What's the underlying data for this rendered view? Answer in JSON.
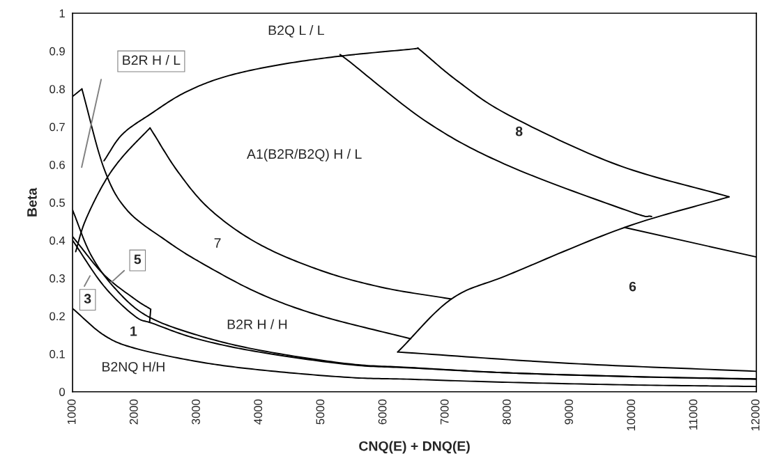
{
  "chart_data": {
    "type": "line",
    "xlabel": "CNQ(E) + DNQ(E)",
    "ylabel": "Beta",
    "xlim": [
      1000,
      12000
    ],
    "xticks": [
      1000,
      2000,
      3000,
      4000,
      5000,
      6000,
      7000,
      8000,
      9000,
      10000,
      11000,
      12000
    ],
    "ylim": [
      0,
      1
    ],
    "yticks": [
      0,
      0.1,
      0.2,
      0.3,
      0.4,
      0.5,
      0.6,
      0.7,
      0.8,
      0.9,
      1
    ],
    "grid": false,
    "marker": "none",
    "line_style": "solid",
    "series": [
      {
        "color": "#000000",
        "x": [
          1000,
          1500,
          2000,
          3000,
          4000,
          5433,
          6440,
          8000,
          10000,
          12000
        ],
        "values": [
          0.22,
          0.15,
          0.115,
          0.08,
          0.058,
          0.038,
          0.033,
          0.025,
          0.018,
          0.014
        ]
      },
      {
        "color": "#000000",
        "x": [
          1000,
          1500,
          2000,
          2300,
          3000,
          4000,
          5433,
          6440,
          8000,
          10000,
          12000
        ],
        "values": [
          0.4,
          0.28,
          0.2,
          0.18,
          0.14,
          0.105,
          0.072,
          0.063,
          0.05,
          0.04,
          0.033
        ]
      },
      {
        "color": "#000000",
        "x": [
          1000,
          1300,
          1700,
          2200,
          3000,
          4000,
          5433,
          6440,
          8000,
          10000,
          12000
        ],
        "values": [
          0.48,
          0.36,
          0.27,
          0.2,
          0.15,
          0.11,
          0.074,
          0.064,
          0.05,
          0.04,
          0.034
        ]
      },
      {
        "color": "#000000",
        "x": [
          1000,
          1500,
          2000,
          2257
        ],
        "values": [
          0.41,
          0.31,
          0.245,
          0.218
        ]
      },
      {
        "color": "#000000",
        "x": [
          2257,
          2240
        ],
        "values": [
          0.218,
          0.186
        ]
      },
      {
        "color": "#000000",
        "x": [
          1000,
          1150
        ],
        "values": [
          0.78,
          0.8
        ]
      },
      {
        "color": "#000000",
        "x": [
          1150,
          1505,
          1875,
          2500,
          3076,
          4000,
          5000,
          6440
        ],
        "values": [
          0.8,
          0.59,
          0.48,
          0.4,
          0.34,
          0.26,
          0.2,
          0.14
        ]
      },
      {
        "color": "#000000",
        "x": [
          1050,
          1200,
          1500,
          1800,
          2246
        ],
        "values": [
          0.37,
          0.45,
          0.55,
          0.62,
          0.697
        ]
      },
      {
        "color": "#000000",
        "x": [
          2246,
          2700,
          3222,
          4000,
          5000,
          6000,
          7094
        ],
        "values": [
          0.697,
          0.58,
          0.48,
          0.39,
          0.32,
          0.275,
          0.245
        ]
      },
      {
        "color": "#000000",
        "x": [
          1505,
          1800,
          2257,
          2800,
          3447,
          4300,
          5320,
          6440,
          6555
        ],
        "values": [
          0.61,
          0.68,
          0.734,
          0.79,
          0.832,
          0.863,
          0.887,
          0.905,
          0.908
        ]
      },
      {
        "color": "#000000",
        "x": [
          6555,
          7200,
          8026,
          9755,
          11560
        ],
        "values": [
          0.908,
          0.82,
          0.73,
          0.6,
          0.515
        ]
      },
      {
        "color": "#000000",
        "x": [
          5320,
          5433,
          6724,
          8026,
          9967,
          10315
        ],
        "values": [
          0.887,
          0.875,
          0.71,
          0.596,
          0.476,
          0.463
        ]
      },
      {
        "color": "#000000",
        "x": [
          6230,
          7094,
          8026,
          9880,
          11560
        ],
        "values": [
          0.105,
          0.245,
          0.31,
          0.434,
          0.515
        ]
      },
      {
        "color": "#000000",
        "x": [
          6230,
          9000,
          12000
        ],
        "values": [
          0.105,
          0.075,
          0.054
        ]
      },
      {
        "color": "#000000",
        "x": [
          9880,
          12000
        ],
        "values": [
          0.434,
          0.356
        ]
      },
      {
        "color": "#808080",
        "x": [
          1460,
          1146
        ],
        "values": [
          0.825,
          0.593
        ]
      },
      {
        "color": "#808080",
        "x": [
          1830,
          1617
        ],
        "values": [
          0.32,
          0.288
        ]
      },
      {
        "color": "#808080",
        "x": [
          1190,
          1280
        ],
        "values": [
          0.279,
          0.306
        ]
      }
    ],
    "annotations": [
      "B2Q L / L",
      "B2R H / L",
      "A1(B2R/B2Q) H / L",
      "8",
      "7",
      "5",
      "3",
      "1",
      "B2R H / H",
      "6",
      "B2NQ H/H"
    ]
  }
}
